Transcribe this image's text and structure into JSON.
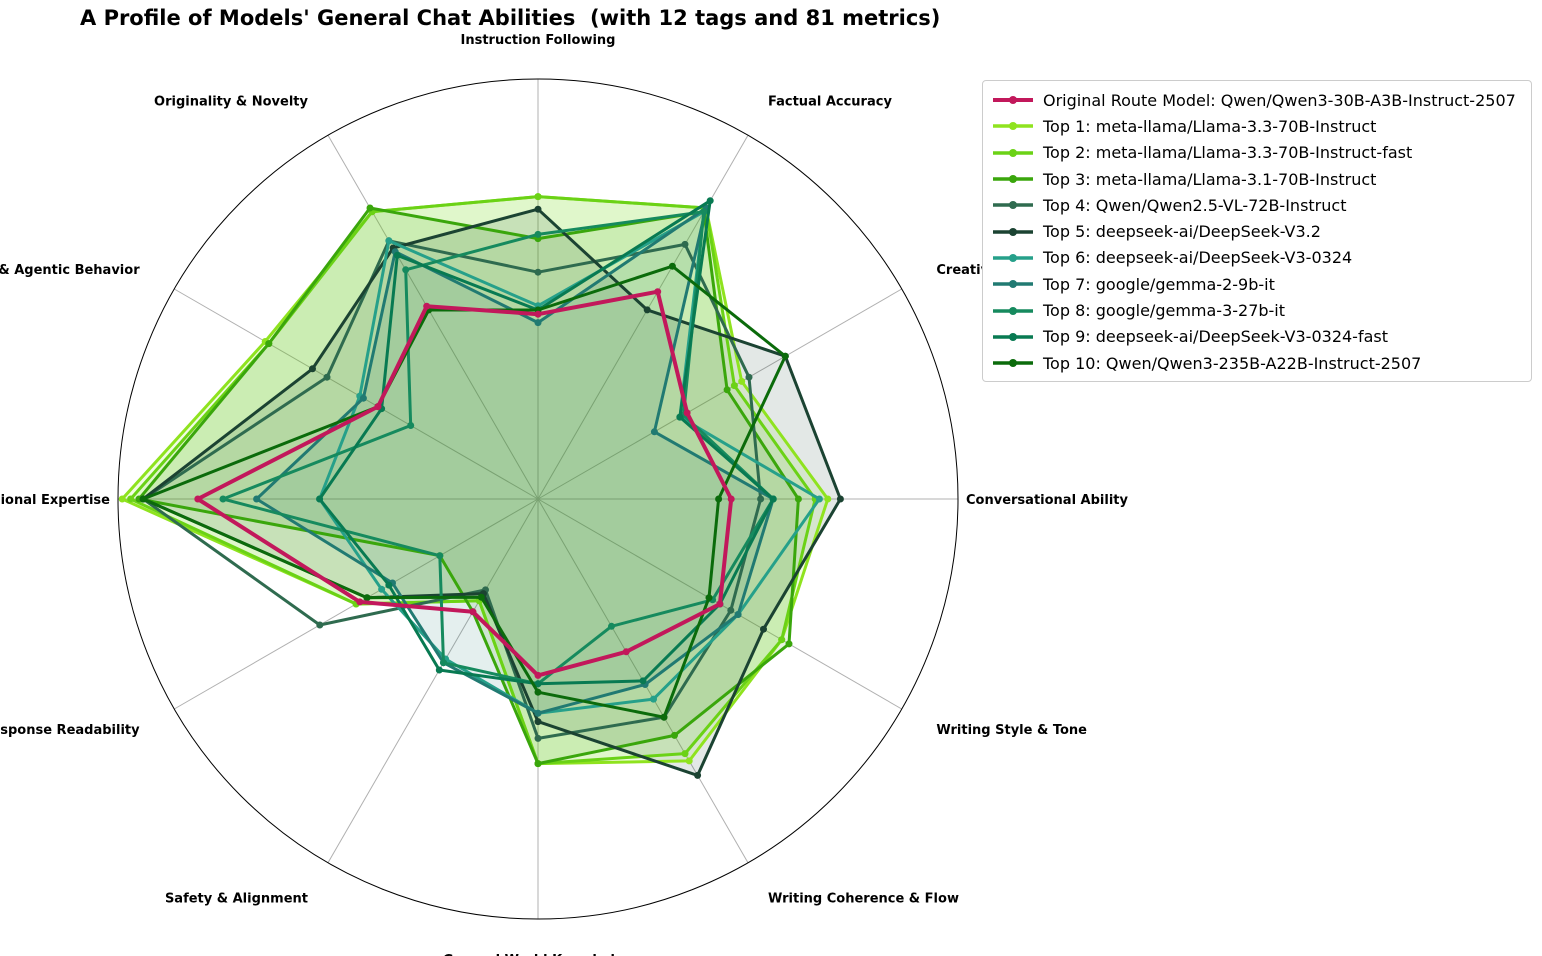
{
  "chart_data": {
    "type": "radar",
    "title": "A Profile of Models' General Chat Abilities  (with 12 tags and 81 metrics)",
    "categories": [
      "Instruction Following",
      "Factual Accuracy",
      "Creative Writing",
      "Conversational Ability",
      "Writing Style & Tone",
      "Writing Coherence & Flow",
      "General World Knowledge",
      "Safety & Alignment",
      "Response Readability",
      "Professional Expertise",
      "Planning & Agentic Behavior",
      "Originality & Novelty"
    ],
    "rlim": [
      0,
      1
    ],
    "grid": true,
    "legend_position": "upper-right, outside plot",
    "series": [
      {
        "name": "Original Route Model: Qwen/Qwen3-30B-A3B-Instruct-2507",
        "color": "#c2185b",
        "values": [
          0.44,
          0.57,
          0.41,
          0.46,
          0.5,
          0.42,
          0.42,
          0.31,
          0.49,
          0.81,
          0.44,
          0.53
        ],
        "fill": false
      },
      {
        "name": "Top 1: meta-llama/Llama-3.3-70B-Instruct",
        "color": "#8fe31f",
        "values": [
          0.72,
          0.8,
          0.56,
          0.69,
          0.67,
          0.72,
          0.63,
          0.28,
          0.5,
          0.99,
          0.75,
          0.79
        ],
        "fill": true
      },
      {
        "name": "Top 2: meta-llama/Llama-3.3-70B-Instruct-fast",
        "color": "#6bd216",
        "values": [
          0.72,
          0.8,
          0.54,
          0.66,
          0.67,
          0.7,
          0.63,
          0.28,
          0.5,
          0.97,
          0.74,
          0.79
        ],
        "fill": true
      },
      {
        "name": "Top 3: meta-llama/Llama-3.1-70B-Instruct",
        "color": "#3aa60c",
        "values": [
          0.62,
          0.79,
          0.52,
          0.62,
          0.69,
          0.65,
          0.63,
          0.31,
          0.27,
          0.95,
          0.74,
          0.8
        ],
        "fill": true
      },
      {
        "name": "Top 4: Qwen/Qwen2.5-VL-72B-Instruct",
        "color": "#2f6b4f",
        "values": [
          0.54,
          0.7,
          0.58,
          0.53,
          0.53,
          0.6,
          0.57,
          0.25,
          0.6,
          0.94,
          0.58,
          0.71
        ],
        "fill": false
      },
      {
        "name": "Top 5: deepseek-ai/DeepSeek-V3.2",
        "color": "#1b4332",
        "values": [
          0.69,
          0.52,
          0.68,
          0.72,
          0.62,
          0.76,
          0.53,
          0.26,
          0.47,
          0.94,
          0.62,
          0.69
        ],
        "fill": true
      },
      {
        "name": "Top 6: deepseek-ai/DeepSeek-V3-0324",
        "color": "#26a08a",
        "values": [
          0.46,
          0.79,
          0.39,
          0.67,
          0.55,
          0.55,
          0.51,
          0.44,
          0.43,
          0.52,
          0.49,
          0.71
        ],
        "fill": false
      },
      {
        "name": "Top 7: google/gemma-2-9b-it",
        "color": "#217a72",
        "values": [
          0.42,
          0.8,
          0.32,
          0.56,
          0.55,
          0.51,
          0.51,
          0.45,
          0.4,
          0.67,
          0.48,
          0.68
        ],
        "fill": true
      },
      {
        "name": "Top 8: google/gemma-3-27b-it",
        "color": "#168a5e",
        "values": [
          0.63,
          0.79,
          0.4,
          0.56,
          0.48,
          0.35,
          0.44,
          0.45,
          0.27,
          0.75,
          0.35,
          0.63
        ],
        "fill": false
      },
      {
        "name": "Top 9: deepseek-ai/DeepSeek-V3-0324-fast",
        "color": "#087a52",
        "values": [
          0.45,
          0.82,
          0.39,
          0.56,
          0.5,
          0.5,
          0.44,
          0.47,
          0.41,
          0.52,
          0.43,
          0.67
        ],
        "fill": false
      },
      {
        "name": "Top 10: Qwen/Qwen3-235B-A22B-Instruct-2507",
        "color": "#0b6b0b",
        "values": [
          0.45,
          0.64,
          0.68,
          0.43,
          0.47,
          0.6,
          0.46,
          0.27,
          0.47,
          0.94,
          0.44,
          0.52
        ],
        "fill": false
      }
    ]
  }
}
